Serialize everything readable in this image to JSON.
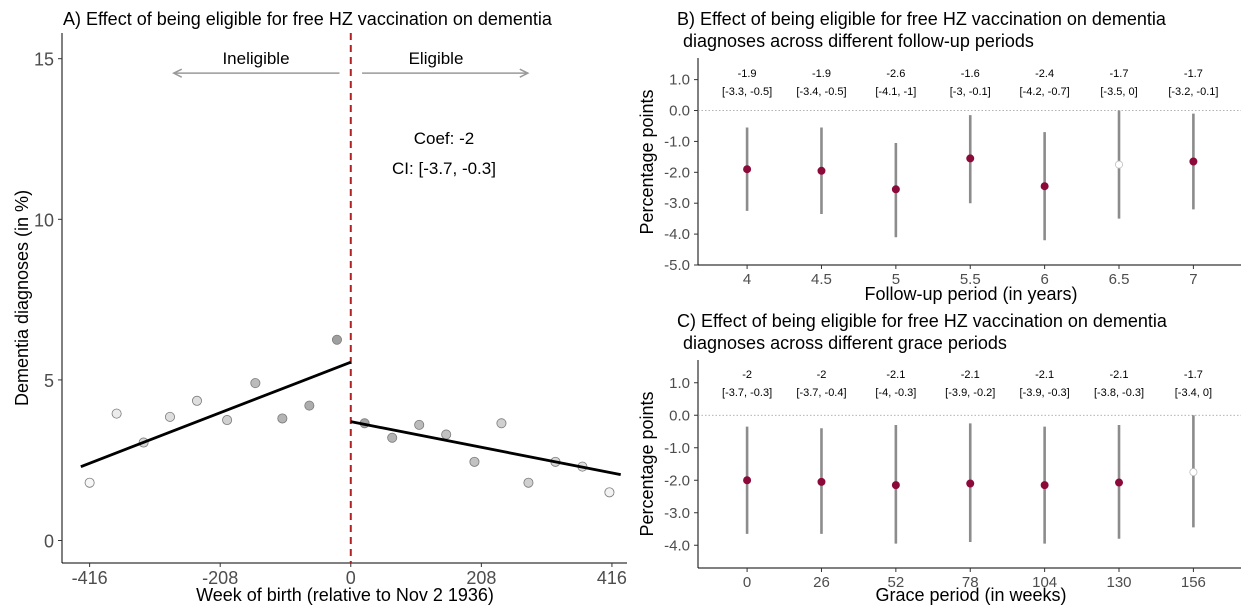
{
  "chart_data": [
    {
      "type": "scatter",
      "title": "A) Effect of being eligible for free HZ vaccination on dementia",
      "xlabel": "Week of birth (relative to Nov 2 1936)",
      "ylabel": "Dementia diagnoses (in %)",
      "xlim": [
        -460,
        440
      ],
      "ylim": [
        -0.7,
        15.8
      ],
      "x_ticks": [
        -416,
        -208,
        0,
        208,
        416
      ],
      "y_ticks": [
        0,
        5,
        10,
        15
      ],
      "cutoff": 0,
      "arrow_labels": {
        "left": "Ineligible",
        "right": "Eligible"
      },
      "annotation": {
        "coef": "Coef: -2",
        "ci": "CI: [-3.7, -0.3]"
      },
      "points": [
        {
          "x": -416,
          "y": 1.8,
          "shade": 0.02
        },
        {
          "x": -373,
          "y": 3.95,
          "shade": 0.1
        },
        {
          "x": -330,
          "y": 3.05,
          "shade": 0.25
        },
        {
          "x": -288,
          "y": 3.85,
          "shade": 0.2
        },
        {
          "x": -245,
          "y": 4.35,
          "shade": 0.2
        },
        {
          "x": -197,
          "y": 3.75,
          "shade": 0.3
        },
        {
          "x": -152,
          "y": 4.9,
          "shade": 0.45
        },
        {
          "x": -109,
          "y": 3.8,
          "shade": 0.5
        },
        {
          "x": -66,
          "y": 4.2,
          "shade": 0.55
        },
        {
          "x": -22,
          "y": 6.25,
          "shade": 0.65
        },
        {
          "x": 22,
          "y": 3.65,
          "shade": 0.6
        },
        {
          "x": 66,
          "y": 3.2,
          "shade": 0.5
        },
        {
          "x": 109,
          "y": 3.6,
          "shade": 0.45
        },
        {
          "x": 152,
          "y": 3.3,
          "shade": 0.4
        },
        {
          "x": 197,
          "y": 2.45,
          "shade": 0.4
        },
        {
          "x": 240,
          "y": 3.65,
          "shade": 0.3
        },
        {
          "x": 283,
          "y": 1.8,
          "shade": 0.3
        },
        {
          "x": 326,
          "y": 2.45,
          "shade": 0.25
        },
        {
          "x": 369,
          "y": 2.3,
          "shade": 0.2
        },
        {
          "x": 412,
          "y": 1.5,
          "shade": 0.05
        }
      ],
      "fit_lines": [
        {
          "x": [
            -430,
            0
          ],
          "y": [
            2.3,
            5.55
          ]
        },
        {
          "x": [
            0,
            430
          ],
          "y": [
            3.7,
            2.05
          ]
        }
      ]
    },
    {
      "type": "scatter",
      "title": "B) Effect of being eligible for free HZ vaccination on dementia",
      "title_line2": "diagnoses across different follow-up periods",
      "xlabel": "Follow-up period (in years)",
      "ylabel": "Percentage points",
      "ylim": [
        -5.0,
        1.7
      ],
      "y_ticks": [
        1.0,
        0.0,
        -1.0,
        -2.0,
        -3.0,
        -4.0,
        -5.0
      ],
      "y_tick_labels": [
        "1.0",
        "0.0",
        "-1.0",
        "-2.0",
        "-3.0",
        "-4.0",
        "-5.0"
      ],
      "categories": [
        "4",
        "4.5",
        "5",
        "5.5",
        "6",
        "6.5",
        "7"
      ],
      "estimates": [
        -1.9,
        -1.95,
        -2.55,
        -1.55,
        -2.45,
        -1.75,
        -1.65
      ],
      "ci_low": [
        -3.25,
        -3.35,
        -4.1,
        -3.0,
        -4.2,
        -3.5,
        -3.2
      ],
      "ci_high": [
        -0.55,
        -0.55,
        -1.05,
        -0.15,
        -0.7,
        0.0,
        -0.1
      ],
      "significant": [
        true,
        true,
        true,
        true,
        true,
        false,
        true
      ],
      "labels_est": [
        "-1.9",
        "-1.9",
        "-2.6",
        "-1.6",
        "-2.4",
        "-1.7",
        "-1.7"
      ],
      "labels_ci": [
        "[-3.3, -0.5]",
        "[-3.4, -0.5]",
        "[-4.1, -1]",
        "[-3, -0.1]",
        "[-4.2, -0.7]",
        "[-3.5, 0]",
        "[-3.2, -0.1]"
      ]
    },
    {
      "type": "scatter",
      "title": "C) Effect of being eligible for free HZ vaccination on dementia",
      "title_line2": "diagnoses across different grace periods",
      "xlabel": "Grace period (in weeks)",
      "ylabel": "Percentage points",
      "ylim": [
        -4.7,
        1.7
      ],
      "y_ticks": [
        1.0,
        0.0,
        -1.0,
        -2.0,
        -3.0,
        -4.0
      ],
      "y_tick_labels": [
        "1.0",
        "0.0",
        "-1.0",
        "-2.0",
        "-3.0",
        "-4.0"
      ],
      "categories": [
        "0",
        "26",
        "52",
        "78",
        "104",
        "130",
        "156"
      ],
      "estimates": [
        -2.0,
        -2.05,
        -2.15,
        -2.1,
        -2.15,
        -2.07,
        -1.75
      ],
      "ci_low": [
        -3.65,
        -3.65,
        -3.95,
        -3.9,
        -3.95,
        -3.8,
        -3.45
      ],
      "ci_high": [
        -0.35,
        -0.4,
        -0.3,
        -0.25,
        -0.35,
        -0.3,
        0.0
      ],
      "significant": [
        true,
        true,
        true,
        true,
        true,
        true,
        false
      ],
      "labels_est": [
        "-2",
        "-2",
        "-2.1",
        "-2.1",
        "-2.1",
        "-2.1",
        "-1.7"
      ],
      "labels_ci": [
        "[-3.7, -0.3]",
        "[-3.7, -0.4]",
        "[-4, -0.3]",
        "[-3.9, -0.2]",
        "[-3.9, -0.3]",
        "[-3.8, -0.3]",
        "[-3.4, 0]"
      ]
    }
  ],
  "colors": {
    "estimate": "#8b0a3a",
    "ci_bar": "#8c8c8c",
    "cutoff": "#b22222",
    "arrow": "#999999",
    "fit_line": "#000000"
  }
}
